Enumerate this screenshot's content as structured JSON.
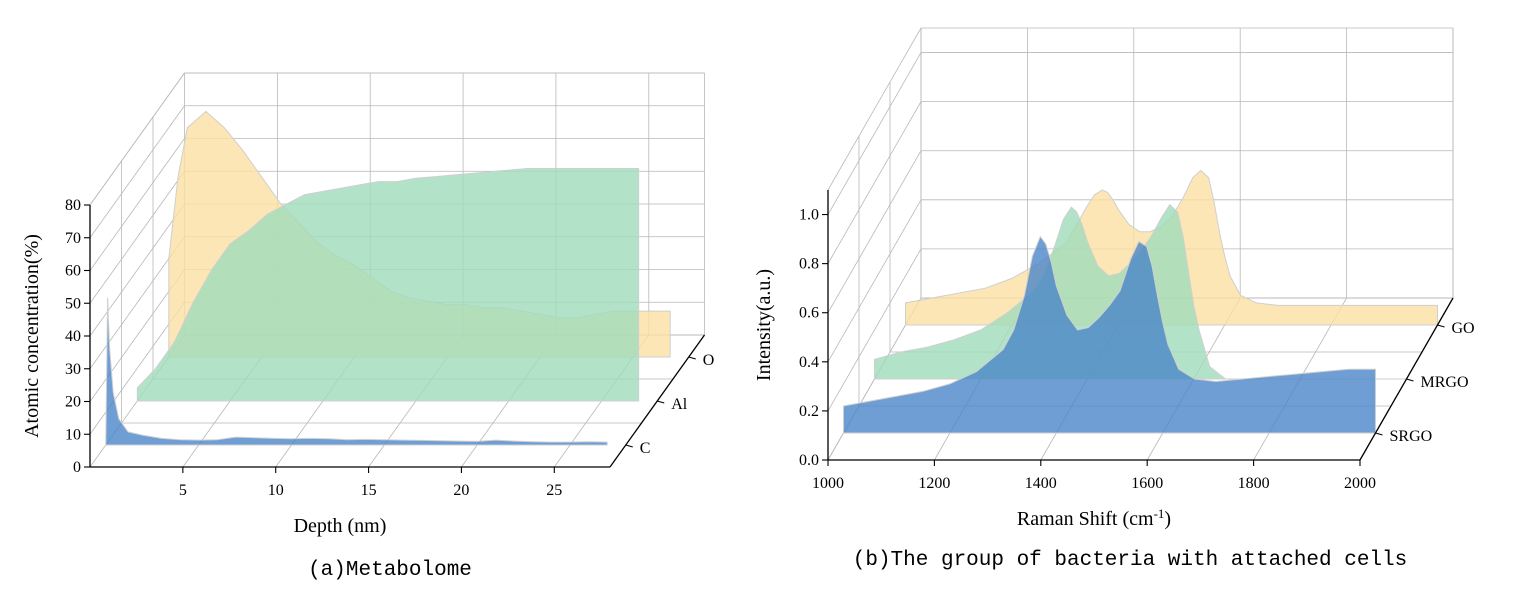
{
  "chart_data": [
    {
      "type": "area",
      "subtype": "3d-waterfall",
      "caption": "(a)Metabolome",
      "xlabel": "Depth (nm)",
      "ylabel": "Atomic concentration(%)",
      "x_ticks": [
        5,
        10,
        15,
        20,
        25
      ],
      "y_ticks": [
        0,
        10,
        20,
        30,
        40,
        50,
        60,
        70,
        80
      ],
      "xlim": [
        0,
        28
      ],
      "ylim": [
        0,
        80
      ],
      "series": [
        {
          "name": "C",
          "color": "#4a86c8",
          "x": [
            0.0,
            0.1,
            0.2,
            0.4,
            0.7,
            1.2,
            2,
            3,
            4,
            5,
            6,
            7,
            8,
            9,
            10,
            11,
            12,
            13,
            14,
            15,
            16,
            17,
            18,
            19,
            20,
            21,
            22,
            23,
            24,
            25,
            26,
            27
          ],
          "values": [
            0,
            45,
            30,
            16,
            8,
            4,
            3,
            2,
            1.6,
            1.5,
            1.6,
            2.4,
            2.2,
            2.0,
            1.9,
            2.0,
            1.9,
            1.6,
            1.7,
            1.6,
            1.5,
            1.4,
            1.3,
            1.2,
            1.1,
            1.5,
            1.2,
            1.0,
            0.9,
            0.9,
            1.0,
            0.9
          ]
        },
        {
          "name": "Al",
          "color": "#9fdcbc",
          "x": [
            0,
            1,
            2,
            3,
            4,
            5,
            6,
            7,
            8,
            9,
            10,
            11,
            12,
            13,
            14,
            15,
            16,
            17,
            18,
            19,
            20,
            21,
            22,
            23,
            24,
            25,
            26,
            27
          ],
          "values": [
            4,
            10,
            18,
            30,
            40,
            48,
            52,
            57,
            60,
            63,
            64,
            65,
            66,
            67,
            67,
            68,
            68.5,
            69,
            69.5,
            70,
            70.5,
            71,
            71,
            71,
            71,
            71,
            71,
            71
          ]
        },
        {
          "name": "O",
          "color": "#fbe0a2",
          "x": [
            0,
            0.5,
            1,
            2,
            3,
            4,
            5,
            6,
            7,
            8,
            9,
            10,
            11,
            12,
            13,
            14,
            15,
            16,
            17,
            18,
            19,
            20,
            21,
            22,
            23,
            24,
            25,
            26,
            27
          ],
          "values": [
            30,
            55,
            70,
            75,
            70,
            63,
            55,
            47,
            41,
            35,
            31,
            28,
            24,
            20,
            18,
            17,
            16,
            16,
            15,
            15,
            14,
            13,
            12,
            12,
            13,
            14,
            14,
            14,
            14
          ]
        }
      ]
    },
    {
      "type": "area",
      "subtype": "3d-waterfall",
      "caption": "(b)The group of bacteria with attached cells",
      "xlabel": "Raman Shift (cm",
      "xlabel_sup": "-1",
      "xlabel_suffix": ")",
      "ylabel": "Intensity(a.u.)",
      "x_ticks": [
        1000,
        1200,
        1400,
        1600,
        1800,
        2000
      ],
      "y_ticks": [
        "0.0",
        "0.2",
        "0.4",
        "0.6",
        "0.8",
        "1.0"
      ],
      "xlim": [
        1000,
        2000
      ],
      "ylim": [
        0,
        1.1
      ],
      "series": [
        {
          "name": "SRGO",
          "color": "#4a86c8",
          "x": [
            1000,
            1050,
            1100,
            1150,
            1200,
            1250,
            1300,
            1320,
            1340,
            1355,
            1370,
            1380,
            1390,
            1400,
            1420,
            1440,
            1460,
            1480,
            1500,
            1520,
            1540,
            1555,
            1570,
            1580,
            1590,
            1600,
            1610,
            1630,
            1660,
            1700,
            1750,
            1800,
            1850,
            1900,
            1950,
            2000
          ],
          "values": [
            0.11,
            0.13,
            0.15,
            0.17,
            0.2,
            0.25,
            0.34,
            0.42,
            0.56,
            0.72,
            0.8,
            0.77,
            0.7,
            0.6,
            0.48,
            0.42,
            0.43,
            0.47,
            0.52,
            0.58,
            0.71,
            0.78,
            0.76,
            0.68,
            0.56,
            0.45,
            0.36,
            0.26,
            0.22,
            0.21,
            0.22,
            0.23,
            0.24,
            0.25,
            0.26,
            0.26
          ]
        },
        {
          "name": "MRGO",
          "color": "#9fdcbc",
          "x": [
            1000,
            1050,
            1100,
            1150,
            1200,
            1250,
            1300,
            1320,
            1340,
            1355,
            1370,
            1380,
            1390,
            1400,
            1420,
            1440,
            1460,
            1480,
            1500,
            1520,
            1540,
            1555,
            1570,
            1580,
            1590,
            1600,
            1610,
            1630,
            1660,
            1700,
            1750,
            1800,
            1850,
            1900,
            1950,
            2000
          ],
          "values": [
            0.08,
            0.11,
            0.13,
            0.16,
            0.2,
            0.27,
            0.36,
            0.43,
            0.55,
            0.65,
            0.7,
            0.68,
            0.63,
            0.56,
            0.46,
            0.42,
            0.43,
            0.47,
            0.52,
            0.58,
            0.66,
            0.71,
            0.68,
            0.58,
            0.44,
            0.3,
            0.2,
            0.05,
            0.0,
            0.0,
            0.0,
            0.0,
            0.0,
            0.0,
            0.0,
            0.0
          ]
        },
        {
          "name": "GO",
          "color": "#fbe0a2",
          "x": [
            1000,
            1050,
            1100,
            1150,
            1200,
            1250,
            1300,
            1320,
            1340,
            1355,
            1370,
            1380,
            1390,
            1400,
            1420,
            1440,
            1460,
            1480,
            1500,
            1520,
            1540,
            1555,
            1570,
            1580,
            1590,
            1600,
            1610,
            1630,
            1660,
            1700,
            1750,
            1800,
            1850,
            1900,
            1950,
            2000
          ],
          "values": [
            0.09,
            0.11,
            0.13,
            0.15,
            0.19,
            0.25,
            0.33,
            0.4,
            0.48,
            0.53,
            0.55,
            0.54,
            0.51,
            0.47,
            0.41,
            0.38,
            0.38,
            0.4,
            0.44,
            0.51,
            0.6,
            0.63,
            0.6,
            0.5,
            0.38,
            0.28,
            0.2,
            0.12,
            0.09,
            0.08,
            0.08,
            0.08,
            0.08,
            0.08,
            0.08,
            0.08
          ]
        }
      ]
    }
  ]
}
